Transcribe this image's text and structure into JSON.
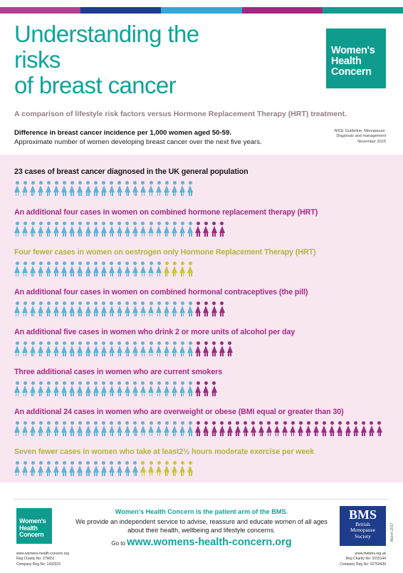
{
  "colors": {
    "stripes": [
      "#b23f93",
      "#1d3d8f",
      "#36a6d9",
      "#a3287f",
      "#0f9c8f"
    ],
    "teal": "#0fa39a",
    "base_figure": "#63b3d4",
    "add_figure": "#9a2d82",
    "less_figure": "#c8c63f",
    "panel": "#f8e6f0"
  },
  "header": {
    "title_line1": "Understanding the risks",
    "title_line2": "of breast cancer",
    "logo": [
      "Women's",
      "Health",
      "Concern"
    ]
  },
  "intro": {
    "subtitle": "A comparison of lifestyle risk factors versus Hormone Replacement Therapy (HRT) treatment.",
    "difference": "Difference in breast cancer incidence per 1,000 women aged 50-59.",
    "approximate": "Approximate number of women developing breast cancer over the next five years.",
    "nice": [
      "NICE Guideline, Menopause:",
      "Diagnosis and management",
      "November 2015"
    ]
  },
  "rows": [
    {
      "label": "23 cases of breast cancer diagnosed in the UK general population",
      "tone": "black",
      "base": 23,
      "extra": 0,
      "extra_type": "none"
    },
    {
      "label": "An additional four cases in women on combined hormone replacement therapy (HRT)",
      "tone": "purple",
      "base": 23,
      "extra": 4,
      "extra_type": "add"
    },
    {
      "label": "Four fewer  cases in women on oestrogen only Hormone Replacement Therapy (HRT)",
      "tone": "olive",
      "base": 19,
      "extra": 4,
      "extra_type": "less"
    },
    {
      "label": "An additional four cases in women on combined hormonal contraceptives (the pill)",
      "tone": "purple",
      "base": 23,
      "extra": 4,
      "extra_type": "add"
    },
    {
      "label": "An additional five cases in women who drink 2 or more units of alcohol per day",
      "tone": "purple",
      "base": 23,
      "extra": 5,
      "extra_type": "add"
    },
    {
      "label": "Three additional cases in women who are current smokers",
      "tone": "purple",
      "base": 23,
      "extra": 3,
      "extra_type": "add"
    },
    {
      "label": "An additional 24 cases in women who are overweight or obese (BMI equal or greater than 30)",
      "tone": "purple",
      "base": 23,
      "extra": 24,
      "extra_type": "add"
    },
    {
      "label": "Seven fewer cases in women who take at least2½ hours moderate exercise per week",
      "tone": "olive",
      "base": 16,
      "extra": 7,
      "extra_type": "less"
    }
  ],
  "footer": {
    "logo": [
      "Women's",
      "Health",
      "Concern"
    ],
    "headline": "Women's Health Concern is the patient arm of the BMS.",
    "description": "We provide an independent service to advise, reassure and educate women of all ages about their health, wellbeing and lifestyle concerns.",
    "go_to": "Go to",
    "url": "www.womens-health-concern.org",
    "left_small": [
      "www.womens-health-concern.org",
      "Reg Charity No: 279651",
      "Company Reg No: 1432023"
    ],
    "right_small": [
      "www.thebms.org.uk",
      "Reg Charity No: 1015144",
      "Company Reg No: 02759439"
    ],
    "bms": [
      "BMS",
      "British",
      "Menopause",
      "Society"
    ],
    "date": "March 2017"
  }
}
